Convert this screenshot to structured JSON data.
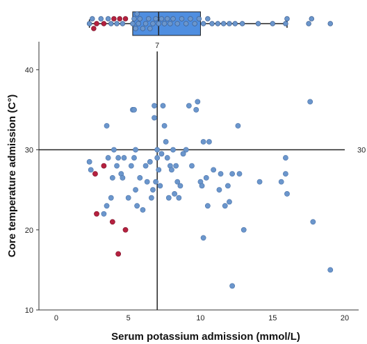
{
  "chart_data": {
    "type": "scatter",
    "xlabel": "Serum potassium admission (mmol/L)",
    "ylabel": "Core temperature admission (C°)",
    "xlim": [
      -1.2,
      20
    ],
    "ylim": [
      10,
      43.5
    ],
    "x_ticks": [
      0,
      5,
      10,
      15,
      20
    ],
    "y_ticks": [
      10,
      20,
      30,
      40
    ],
    "x_tick_labels": [
      "0",
      "5",
      "10",
      "15",
      "20"
    ],
    "y_tick_labels": [
      "10",
      "20",
      "30",
      "40"
    ],
    "reference_lines": {
      "vertical": {
        "value": 7,
        "label": "7"
      },
      "horizontal": {
        "value": 30,
        "label": "30"
      }
    },
    "colors": {
      "normal": "#6b96cc",
      "highlight": "#b5213f",
      "box": "#4f8ee0",
      "line": "#222222"
    },
    "boxplot": {
      "q1": 5.3,
      "median": 7.1,
      "q3": 10.0,
      "whisker_low": 2.3,
      "whisker_high": 16.0,
      "outliers": [
        17.5,
        17.7,
        19.0
      ],
      "points": [
        {
          "x": 2.3,
          "h": false
        },
        {
          "x": 2.5,
          "h": false
        },
        {
          "x": 2.6,
          "h": true
        },
        {
          "x": 2.8,
          "h": true
        },
        {
          "x": 3.1,
          "h": false
        },
        {
          "x": 3.3,
          "h": true
        },
        {
          "x": 3.6,
          "h": false
        },
        {
          "x": 3.8,
          "h": false
        },
        {
          "x": 4.0,
          "h": true
        },
        {
          "x": 4.2,
          "h": false
        },
        {
          "x": 4.4,
          "h": true
        },
        {
          "x": 4.6,
          "h": false
        },
        {
          "x": 4.8,
          "h": true
        },
        {
          "x": 5.3,
          "h": false
        },
        {
          "x": 5.4,
          "h": false
        },
        {
          "x": 5.5,
          "h": false
        },
        {
          "x": 5.6,
          "h": false
        },
        {
          "x": 5.7,
          "h": false
        },
        {
          "x": 5.8,
          "h": false
        },
        {
          "x": 6.0,
          "h": false
        },
        {
          "x": 6.2,
          "h": false
        },
        {
          "x": 6.4,
          "h": false
        },
        {
          "x": 6.5,
          "h": false
        },
        {
          "x": 6.7,
          "h": false
        },
        {
          "x": 6.9,
          "h": false
        },
        {
          "x": 7.1,
          "h": false
        },
        {
          "x": 7.3,
          "h": false
        },
        {
          "x": 7.5,
          "h": false
        },
        {
          "x": 7.7,
          "h": false
        },
        {
          "x": 7.9,
          "h": false
        },
        {
          "x": 8.1,
          "h": false
        },
        {
          "x": 8.4,
          "h": false
        },
        {
          "x": 8.7,
          "h": false
        },
        {
          "x": 9.0,
          "h": false
        },
        {
          "x": 9.3,
          "h": false
        },
        {
          "x": 9.6,
          "h": false
        },
        {
          "x": 9.9,
          "h": false
        },
        {
          "x": 10.2,
          "h": false
        },
        {
          "x": 10.5,
          "h": false
        },
        {
          "x": 10.8,
          "h": false
        },
        {
          "x": 11.2,
          "h": false
        },
        {
          "x": 11.6,
          "h": false
        },
        {
          "x": 12.0,
          "h": false
        },
        {
          "x": 12.4,
          "h": false
        },
        {
          "x": 12.9,
          "h": false
        },
        {
          "x": 14.0,
          "h": false
        },
        {
          "x": 15.0,
          "h": false
        },
        {
          "x": 15.9,
          "h": false
        },
        {
          "x": 16.0,
          "h": false
        }
      ]
    },
    "points": [
      {
        "x": 2.3,
        "y": 28.5,
        "h": false
      },
      {
        "x": 2.4,
        "y": 27.5,
        "h": false
      },
      {
        "x": 2.7,
        "y": 27.0,
        "h": true
      },
      {
        "x": 2.8,
        "y": 22.0,
        "h": true
      },
      {
        "x": 3.3,
        "y": 28.0,
        "h": true
      },
      {
        "x": 3.5,
        "y": 33.0,
        "h": false
      },
      {
        "x": 3.3,
        "y": 22.0,
        "h": false
      },
      {
        "x": 3.5,
        "y": 23.0,
        "h": false
      },
      {
        "x": 3.6,
        "y": 29.0,
        "h": false
      },
      {
        "x": 3.8,
        "y": 24.0,
        "h": false
      },
      {
        "x": 3.9,
        "y": 26.5,
        "h": false
      },
      {
        "x": 3.9,
        "y": 21.0,
        "h": true
      },
      {
        "x": 4.0,
        "y": 30.0,
        "h": false
      },
      {
        "x": 4.2,
        "y": 28.0,
        "h": false
      },
      {
        "x": 4.3,
        "y": 29.0,
        "h": false
      },
      {
        "x": 4.3,
        "y": 17.0,
        "h": true
      },
      {
        "x": 4.5,
        "y": 27.0,
        "h": false
      },
      {
        "x": 4.6,
        "y": 26.5,
        "h": false
      },
      {
        "x": 4.7,
        "y": 29.0,
        "h": false
      },
      {
        "x": 4.8,
        "y": 20.0,
        "h": true
      },
      {
        "x": 5.0,
        "y": 24.0,
        "h": false
      },
      {
        "x": 5.2,
        "y": 28.0,
        "h": false
      },
      {
        "x": 5.3,
        "y": 35.0,
        "h": false
      },
      {
        "x": 5.4,
        "y": 35.0,
        "h": false
      },
      {
        "x": 5.4,
        "y": 29.0,
        "h": false
      },
      {
        "x": 5.5,
        "y": 25.0,
        "h": false
      },
      {
        "x": 5.5,
        "y": 30.0,
        "h": false
      },
      {
        "x": 5.6,
        "y": 23.0,
        "h": false
      },
      {
        "x": 5.8,
        "y": 26.5,
        "h": false
      },
      {
        "x": 6.0,
        "y": 22.5,
        "h": false
      },
      {
        "x": 6.2,
        "y": 28.0,
        "h": false
      },
      {
        "x": 6.3,
        "y": 26.0,
        "h": false
      },
      {
        "x": 6.5,
        "y": 28.5,
        "h": false
      },
      {
        "x": 6.6,
        "y": 24.0,
        "h": false
      },
      {
        "x": 6.7,
        "y": 25.0,
        "h": false
      },
      {
        "x": 6.8,
        "y": 34.0,
        "h": false
      },
      {
        "x": 6.8,
        "y": 35.5,
        "h": false
      },
      {
        "x": 6.9,
        "y": 26.0,
        "h": false
      },
      {
        "x": 7.0,
        "y": 29.0,
        "h": false
      },
      {
        "x": 7.0,
        "y": 30.0,
        "h": false
      },
      {
        "x": 7.1,
        "y": 27.5,
        "h": false
      },
      {
        "x": 7.2,
        "y": 25.5,
        "h": false
      },
      {
        "x": 7.3,
        "y": 29.5,
        "h": false
      },
      {
        "x": 7.4,
        "y": 35.5,
        "h": false
      },
      {
        "x": 7.5,
        "y": 33.0,
        "h": false
      },
      {
        "x": 7.6,
        "y": 31.0,
        "h": false
      },
      {
        "x": 7.7,
        "y": 29.0,
        "h": false
      },
      {
        "x": 7.8,
        "y": 24.0,
        "h": false
      },
      {
        "x": 7.9,
        "y": 28.0,
        "h": false
      },
      {
        "x": 8.0,
        "y": 27.5,
        "h": false
      },
      {
        "x": 8.1,
        "y": 30.0,
        "h": false
      },
      {
        "x": 8.2,
        "y": 24.5,
        "h": false
      },
      {
        "x": 8.3,
        "y": 28.0,
        "h": false
      },
      {
        "x": 8.4,
        "y": 26.0,
        "h": false
      },
      {
        "x": 8.5,
        "y": 24.0,
        "h": false
      },
      {
        "x": 8.6,
        "y": 25.5,
        "h": false
      },
      {
        "x": 8.8,
        "y": 29.5,
        "h": false
      },
      {
        "x": 9.0,
        "y": 30.0,
        "h": false
      },
      {
        "x": 9.2,
        "y": 35.5,
        "h": false
      },
      {
        "x": 9.4,
        "y": 28.0,
        "h": false
      },
      {
        "x": 9.7,
        "y": 35.0,
        "h": false
      },
      {
        "x": 9.8,
        "y": 36.0,
        "h": false
      },
      {
        "x": 10.0,
        "y": 26.0,
        "h": false
      },
      {
        "x": 10.1,
        "y": 25.5,
        "h": false
      },
      {
        "x": 10.2,
        "y": 31.0,
        "h": false
      },
      {
        "x": 10.2,
        "y": 19.0,
        "h": false
      },
      {
        "x": 10.4,
        "y": 26.5,
        "h": false
      },
      {
        "x": 10.5,
        "y": 23.0,
        "h": false
      },
      {
        "x": 10.6,
        "y": 31.0,
        "h": false
      },
      {
        "x": 10.9,
        "y": 27.5,
        "h": false
      },
      {
        "x": 11.3,
        "y": 25.0,
        "h": false
      },
      {
        "x": 11.4,
        "y": 27.0,
        "h": false
      },
      {
        "x": 11.7,
        "y": 23.0,
        "h": false
      },
      {
        "x": 11.9,
        "y": 25.5,
        "h": false
      },
      {
        "x": 12.0,
        "y": 23.5,
        "h": false
      },
      {
        "x": 12.2,
        "y": 27.0,
        "h": false
      },
      {
        "x": 12.2,
        "y": 13.0,
        "h": false
      },
      {
        "x": 12.6,
        "y": 33.0,
        "h": false
      },
      {
        "x": 12.7,
        "y": 27.0,
        "h": false
      },
      {
        "x": 13.0,
        "y": 20.0,
        "h": false
      },
      {
        "x": 14.1,
        "y": 26.0,
        "h": false
      },
      {
        "x": 15.6,
        "y": 26.0,
        "h": false
      },
      {
        "x": 15.9,
        "y": 29.0,
        "h": false
      },
      {
        "x": 15.9,
        "y": 27.0,
        "h": false
      },
      {
        "x": 16.0,
        "y": 24.5,
        "h": false
      },
      {
        "x": 17.6,
        "y": 36.0,
        "h": false
      },
      {
        "x": 17.8,
        "y": 21.0,
        "h": false
      },
      {
        "x": 19.0,
        "y": 15.0,
        "h": false
      }
    ]
  }
}
